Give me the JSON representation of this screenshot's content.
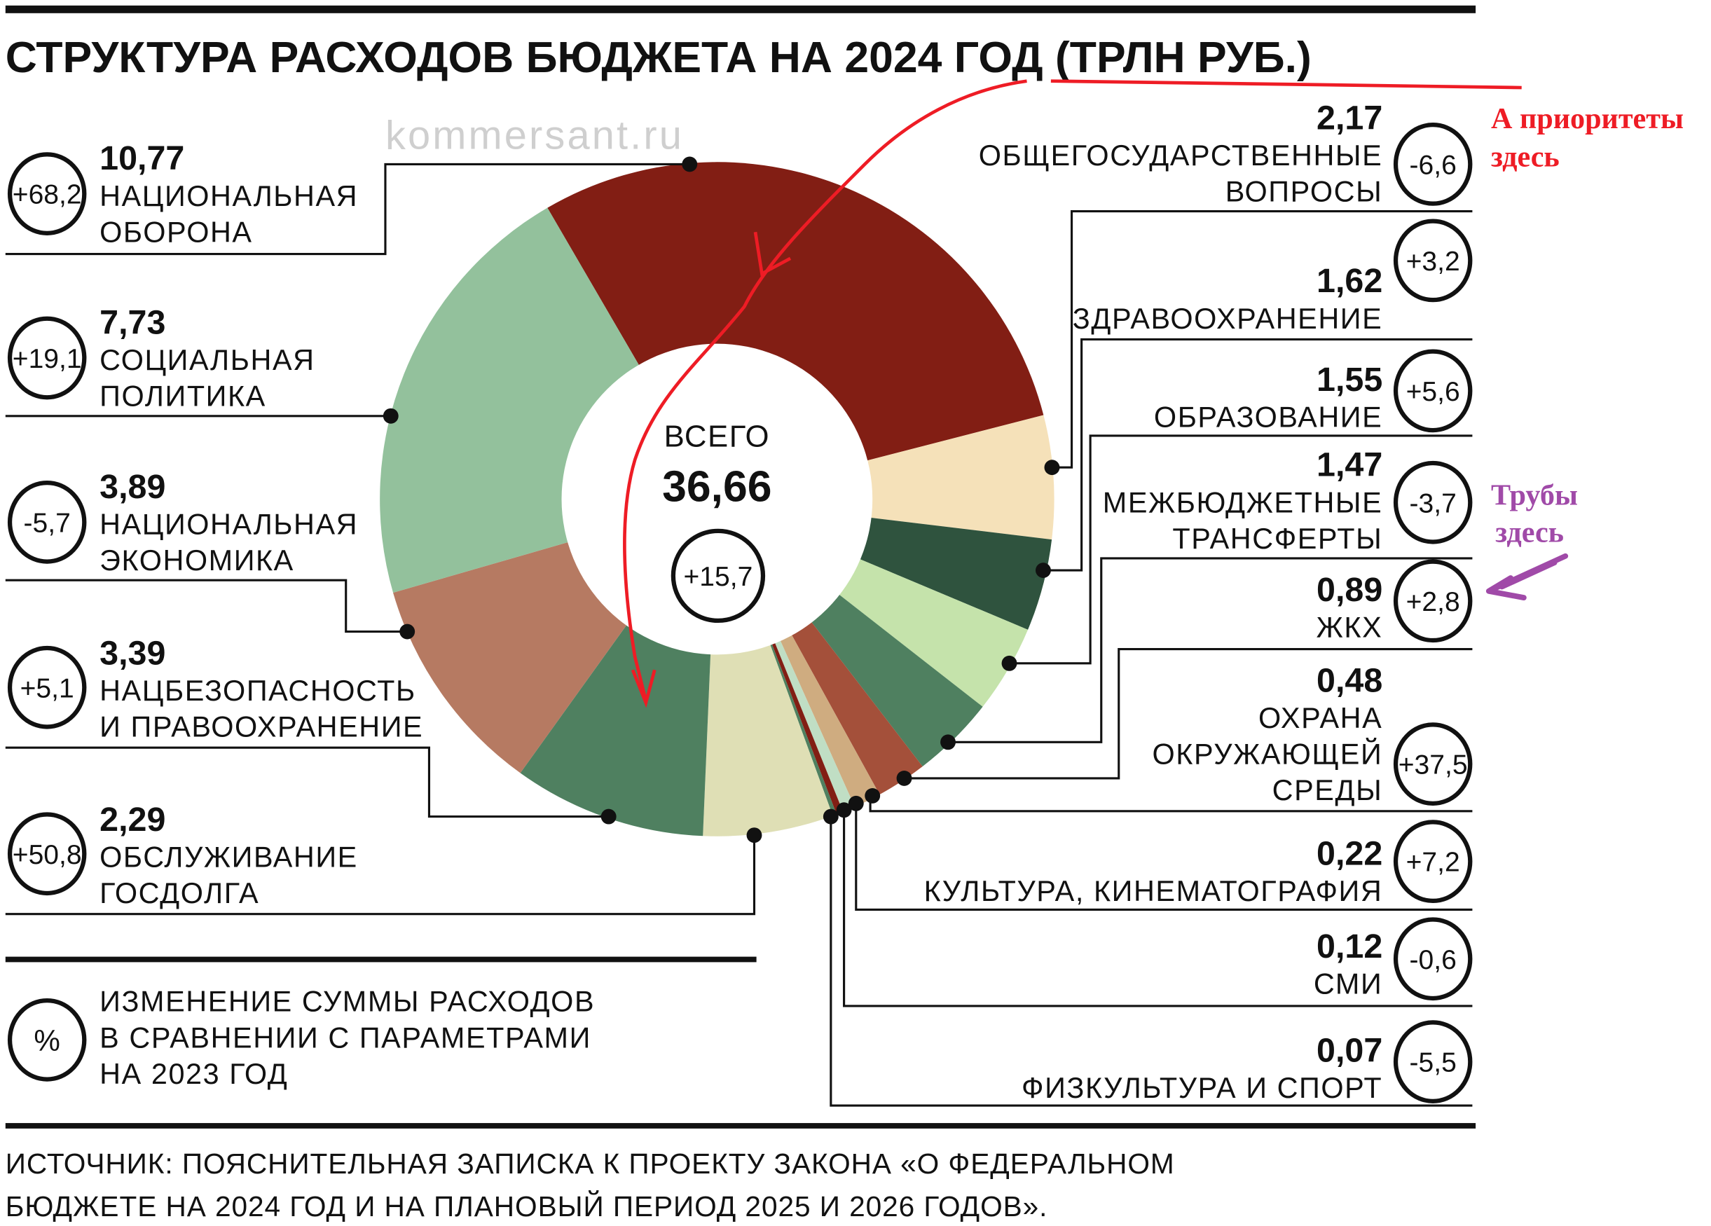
{
  "chart_data": {
    "type": "pie",
    "title": "СТРУКТУРА РАСХОДОВ БЮДЖЕТА НА 2024 ГОД (ТРЛН РУБ.)",
    "total_label": "ВСЕГО",
    "total_value": "36,66",
    "total_change": "+15,7",
    "slices": [
      {
        "label": [
          "НАЦИОНАЛЬНАЯ",
          "ОБОРОНА"
        ],
        "value": 10.77,
        "value_text": "10,77",
        "change": "+68,2",
        "color": "#821e14"
      },
      {
        "label": [
          "ОБЩЕГОСУДАРСТВЕННЫЕ",
          "ВОПРОСЫ"
        ],
        "value": 2.17,
        "value_text": "2,17",
        "change": "-6,6",
        "color": "#f5e1b9"
      },
      {
        "label": [
          "ЗДРАВООХРАНЕНИЕ"
        ],
        "value": 1.62,
        "value_text": "1,62",
        "change": "+3,2",
        "color": "#2f533e"
      },
      {
        "label": [
          "ОБРАЗОВАНИЕ"
        ],
        "value": 1.55,
        "value_text": "1,55",
        "change": "+5,6",
        "color": "#c5e3ab"
      },
      {
        "label": [
          "МЕЖБЮДЖЕТНЫЕ",
          "ТРАНСФЕРТЫ"
        ],
        "value": 1.47,
        "value_text": "1,47",
        "change": "-3,7",
        "color": "#4f8060"
      },
      {
        "label": [
          "ЖКХ"
        ],
        "value": 0.89,
        "value_text": "0,89",
        "change": "+2,8",
        "color": "#a4503a"
      },
      {
        "label": [
          "ОХРАНА",
          "ОКРУЖАЮЩЕЙ",
          "СРЕДЫ"
        ],
        "value": 0.48,
        "value_text": "0,48",
        "change": "+37,5",
        "color": "#cfac80"
      },
      {
        "label": [
          "КУЛЬТУРА, КИНЕМАТОГРАФИЯ"
        ],
        "value": 0.22,
        "value_text": "0,22",
        "change": "+7,2",
        "color": "#c0dec4"
      },
      {
        "label": [
          "СМИ"
        ],
        "value": 0.12,
        "value_text": "0,12",
        "change": "-0,6",
        "color": "#821e14"
      },
      {
        "label": [
          "ФИЗКУЛЬТУРА И СПОРТ"
        ],
        "value": 0.07,
        "value_text": "0,07",
        "change": "-5,5",
        "color": "#4f8060"
      },
      {
        "label": [
          "ОБСЛУЖИВАНИЕ",
          "ГОСДОЛГА"
        ],
        "value": 2.29,
        "value_text": "2,29",
        "change": "+50,8",
        "color": "#dfdfb5"
      },
      {
        "label": [
          "НАЦБЕЗОПАСНОСТЬ",
          "И ПРАВООХРАНЕНИЕ"
        ],
        "value": 3.39,
        "value_text": "3,39",
        "change": "+5,1",
        "color": "#4f8060"
      },
      {
        "label": [
          "НАЦИОНАЛЬНАЯ",
          "ЭКОНОМИКА"
        ],
        "value": 3.89,
        "value_text": "3,89",
        "change": "-5,7",
        "color": "#b67a62"
      },
      {
        "label": [
          "СОЦИАЛЬНАЯ",
          "ПОЛИТИКА"
        ],
        "value": 7.73,
        "value_text": "7,73",
        "change": "+19,1",
        "color": "#93c19c"
      }
    ],
    "legend": {
      "symbol": "%",
      "text": [
        "ИЗМЕНЕНИЕ СУММЫ РАСХОДОВ",
        "В СРАВНЕНИИ С ПАРАМЕТРАМИ",
        "НА 2023 ГОД"
      ]
    }
  },
  "watermark": "kommersant.ru",
  "source": [
    "ИСТОЧНИК: ПОЯСНИТЕЛЬНАЯ ЗАПИСКА К ПРОЕКТУ ЗАКОНА «О ФЕДЕРАЛЬНОМ",
    "БЮДЖЕТЕ НА 2024 ГОД И НА ПЛАНОВЫЙ ПЕРИОД 2025 И 2026 ГОДОВ»."
  ],
  "annotations": {
    "priorities": [
      "А приоритеты",
      "здесь"
    ],
    "pipes": [
      "Трубы",
      "здесь"
    ],
    "red": "#ee1c25",
    "purple": "#a04aa8"
  }
}
